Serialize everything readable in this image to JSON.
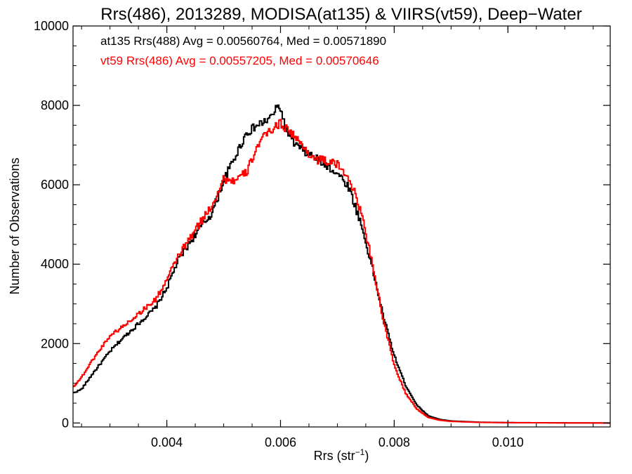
{
  "chart_data": {
    "type": "line",
    "title": "Rrs(486), 2013289, MODISA(at135) & VIIRS(vt59), Deep−Water",
    "xlabel": "Rrs (str",
    "xlabel_sup": "−1",
    "xlabel_end": ")",
    "ylabel": "Number of Observations",
    "xlim": [
      0.00235,
      0.0118
    ],
    "ylim": [
      -100,
      10000
    ],
    "x_ticks": [
      0.004,
      0.006,
      0.008,
      0.01
    ],
    "x_tick_labels": [
      "0.004",
      "0.006",
      "0.008",
      "0.010"
    ],
    "y_ticks": [
      0,
      2000,
      4000,
      6000,
      8000,
      10000
    ],
    "y_tick_labels": [
      "0",
      "2000",
      "4000",
      "6000",
      "8000",
      "10000"
    ],
    "grid": false,
    "step": "histogram",
    "annotations": [
      {
        "text": "at135 Rrs(488) Avg = 0.00560764, Med = 0.00571890",
        "color": "#000000"
      },
      {
        "text": "vt59 Rrs(486) Avg = 0.00557205, Med = 0.00570646",
        "color": "#ff0000"
      }
    ],
    "series": [
      {
        "color": "#000000",
        "points": [
          [
            0.00235,
            750
          ],
          [
            0.0025,
            850
          ],
          [
            0.0027,
            1250
          ],
          [
            0.003,
            1800
          ],
          [
            0.0032,
            2100
          ],
          [
            0.0035,
            2500
          ],
          [
            0.0038,
            2900
          ],
          [
            0.004,
            3400
          ],
          [
            0.0042,
            4100
          ],
          [
            0.0045,
            4750
          ],
          [
            0.0048,
            5300
          ],
          [
            0.005,
            6100
          ],
          [
            0.0052,
            6700
          ],
          [
            0.0054,
            7300
          ],
          [
            0.0056,
            7500
          ],
          [
            0.0058,
            7650
          ],
          [
            0.0059,
            7850
          ],
          [
            0.00598,
            8000
          ],
          [
            0.0061,
            7400
          ],
          [
            0.0062,
            7100
          ],
          [
            0.0064,
            6850
          ],
          [
            0.0066,
            6700
          ],
          [
            0.0068,
            6500
          ],
          [
            0.007,
            6300
          ],
          [
            0.0072,
            5950
          ],
          [
            0.0074,
            5100
          ],
          [
            0.0076,
            4000
          ],
          [
            0.0078,
            2750
          ],
          [
            0.008,
            1700
          ],
          [
            0.0082,
            950
          ],
          [
            0.0084,
            450
          ],
          [
            0.0086,
            180
          ],
          [
            0.0088,
            90
          ],
          [
            0.009,
            50
          ],
          [
            0.0095,
            20
          ],
          [
            0.01,
            10
          ],
          [
            0.011,
            3
          ],
          [
            0.0118,
            0
          ]
        ]
      },
      {
        "color": "#ff0000",
        "points": [
          [
            0.00235,
            900
          ],
          [
            0.0025,
            1150
          ],
          [
            0.0027,
            1600
          ],
          [
            0.003,
            2200
          ],
          [
            0.0032,
            2400
          ],
          [
            0.0035,
            2750
          ],
          [
            0.0038,
            3100
          ],
          [
            0.004,
            3600
          ],
          [
            0.0042,
            4200
          ],
          [
            0.0045,
            4850
          ],
          [
            0.0048,
            5500
          ],
          [
            0.005,
            6150
          ],
          [
            0.0052,
            6100
          ],
          [
            0.0054,
            6300
          ],
          [
            0.0056,
            7000
          ],
          [
            0.0058,
            7350
          ],
          [
            0.006,
            7550
          ],
          [
            0.0062,
            7300
          ],
          [
            0.0064,
            6950
          ],
          [
            0.0066,
            6650
          ],
          [
            0.0068,
            6600
          ],
          [
            0.007,
            6500
          ],
          [
            0.0072,
            6200
          ],
          [
            0.0074,
            5400
          ],
          [
            0.0076,
            4150
          ],
          [
            0.0078,
            2650
          ],
          [
            0.008,
            1450
          ],
          [
            0.0082,
            750
          ],
          [
            0.0084,
            350
          ],
          [
            0.0086,
            140
          ],
          [
            0.0088,
            70
          ],
          [
            0.009,
            40
          ],
          [
            0.0095,
            15
          ],
          [
            0.01,
            8
          ],
          [
            0.011,
            2
          ],
          [
            0.0118,
            0
          ]
        ]
      }
    ]
  }
}
